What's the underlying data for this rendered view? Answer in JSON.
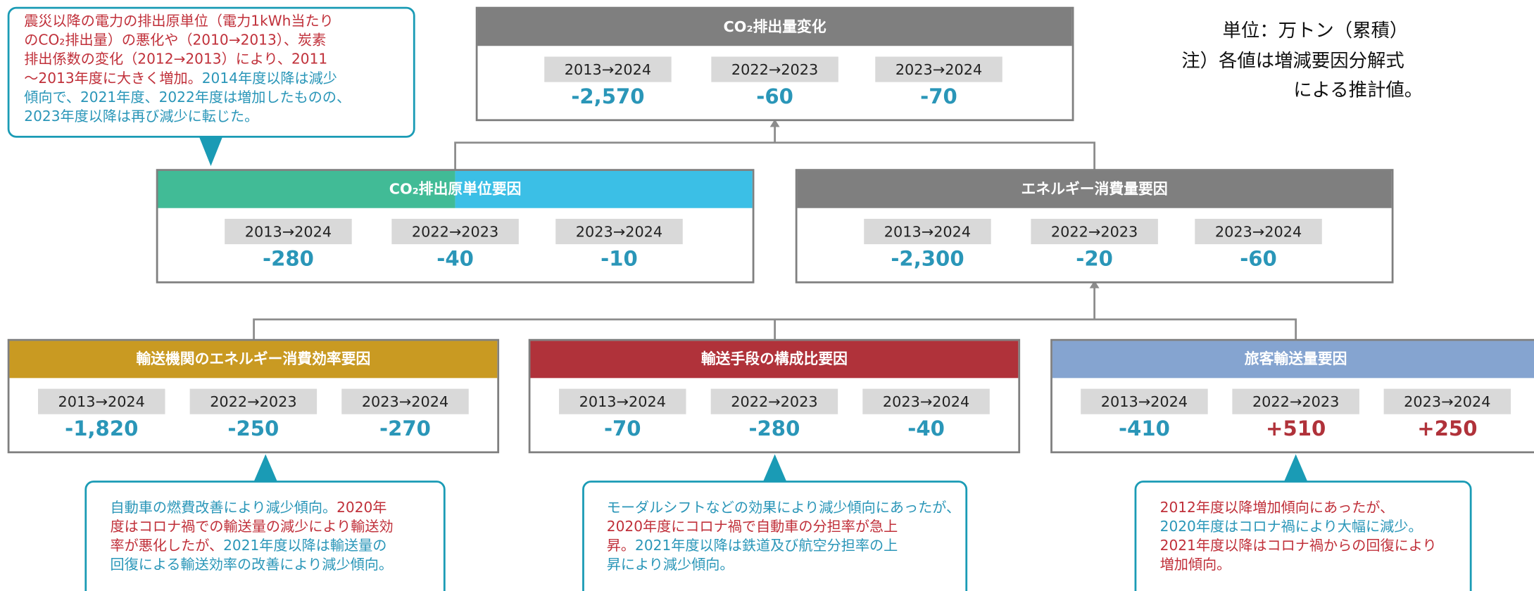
{
  "unit_note": {
    "lines": [
      "単位：万トン（累積）",
      "注）各値は増減要因分解式",
      "による推計値。"
    ]
  },
  "nodes": [
    {
      "title": "CO₂排出量変化",
      "periods": [
        "2013→2024",
        "2022→2023",
        "2023→2024"
      ],
      "values": [
        "-2,570",
        "-60",
        "-70"
      ],
      "header_colors": [
        "#7f7f7f"
      ],
      "value_colors": [
        "#2a96b8",
        "#2a96b8",
        "#2a96b8"
      ]
    },
    {
      "title": "CO₂排出原単位要因",
      "periods": [
        "2013→2024",
        "2022→2023",
        "2023→2024"
      ],
      "values": [
        "-280",
        "-40",
        "-10"
      ],
      "header_colors": [
        "#41bb96",
        "#3bbfe6"
      ],
      "value_colors": [
        "#2a96b8",
        "#2a96b8",
        "#2a96b8"
      ]
    },
    {
      "title": "エネルギー消費量要因",
      "periods": [
        "2013→2024",
        "2022→2023",
        "2023→2024"
      ],
      "values": [
        "-2,300",
        "-20",
        "-60"
      ],
      "header_colors": [
        "#7f7f7f"
      ],
      "value_colors": [
        "#2a96b8",
        "#2a96b8",
        "#2a96b8"
      ]
    },
    {
      "title": "輸送機関のエネルギー消費効率要因",
      "periods": [
        "2013→2024",
        "2022→2023",
        "2023→2024"
      ],
      "values": [
        "-1,820",
        "-250",
        "-270"
      ],
      "header_colors": [
        "#c99a22"
      ],
      "value_colors": [
        "#2a96b8",
        "#2a96b8",
        "#2a96b8"
      ]
    },
    {
      "title": "輸送手段の構成比要因",
      "periods": [
        "2013→2024",
        "2022→2023",
        "2023→2024"
      ],
      "values": [
        "-70",
        "-280",
        "-40"
      ],
      "header_colors": [
        "#b0323a"
      ],
      "value_colors": [
        "#2a96b8",
        "#2a96b8",
        "#2a96b8"
      ]
    },
    {
      "title": "旅客輸送量要因",
      "periods": [
        "2013→2024",
        "2022→2023",
        "2023→2024"
      ],
      "values": [
        "-410",
        "+510",
        "+250"
      ],
      "header_colors": [
        "#85a4d0"
      ],
      "value_colors": [
        "#2a96b8",
        "#b0323a",
        "#b0323a"
      ]
    }
  ],
  "callouts": [
    {
      "lines": [
        [
          {
            "text": "震災以降の電力の排出原単位（電力1kWh当たり",
            "color": "#c0303a"
          }
        ],
        [
          {
            "text": "のCO₂排出量）の悪化や（2010→2013）、炭素",
            "color": "#c0303a"
          }
        ],
        [
          {
            "text": "排出係数の変化（2012→2013）により、2011",
            "color": "#c0303a"
          }
        ],
        [
          {
            "text": "～2013年度に大きく増加。",
            "color": "#c0303a"
          },
          {
            "text": "2014年度以降は減少",
            "color": "#2a96b8"
          }
        ],
        [
          {
            "text": "傾向で、2021年度、2022年度は増加したものの、",
            "color": "#2a96b8"
          }
        ],
        [
          {
            "text": "2023年度以降は再び減少に転じた。",
            "color": "#2a96b8"
          }
        ]
      ]
    },
    {
      "lines": [
        [
          {
            "text": "自動車の燃費改善により減少傾向。",
            "color": "#2a96b8"
          },
          {
            "text": "2020年",
            "color": "#c0303a"
          }
        ],
        [
          {
            "text": "度はコロナ禍での輸送量の減少により輸送効",
            "color": "#c0303a"
          }
        ],
        [
          {
            "text": "率が悪化したが、",
            "color": "#c0303a"
          },
          {
            "text": "2021年度以降は輸送量の",
            "color": "#2a96b8"
          }
        ],
        [
          {
            "text": "回復による輸送効率の改善により減少傾向。",
            "color": "#2a96b8"
          }
        ]
      ]
    },
    {
      "lines": [
        [
          {
            "text": "モーダルシフトなどの効果により減少傾向にあったが、",
            "color": "#2a96b8"
          }
        ],
        [
          {
            "text": "2020年度にコロナ禍で自動車の分担率が急上",
            "color": "#c0303a"
          }
        ],
        [
          {
            "text": "昇。",
            "color": "#c0303a"
          },
          {
            "text": "2021年度以降は鉄道及び航空分担率の上",
            "color": "#2a96b8"
          }
        ],
        [
          {
            "text": "昇により減少傾向。",
            "color": "#2a96b8"
          }
        ]
      ]
    },
    {
      "lines": [
        [
          {
            "text": "2012年度以降増加傾向にあったが、",
            "color": "#c0303a"
          }
        ],
        [
          {
            "text": "2020年度はコロナ禍により大幅に減少。",
            "color": "#2a96b8"
          }
        ],
        [
          {
            "text": "2021年度以降はコロナ禍からの回復により",
            "color": "#c0303a"
          }
        ],
        [
          {
            "text": "増加傾向。",
            "color": "#c0303a"
          }
        ]
      ]
    }
  ]
}
